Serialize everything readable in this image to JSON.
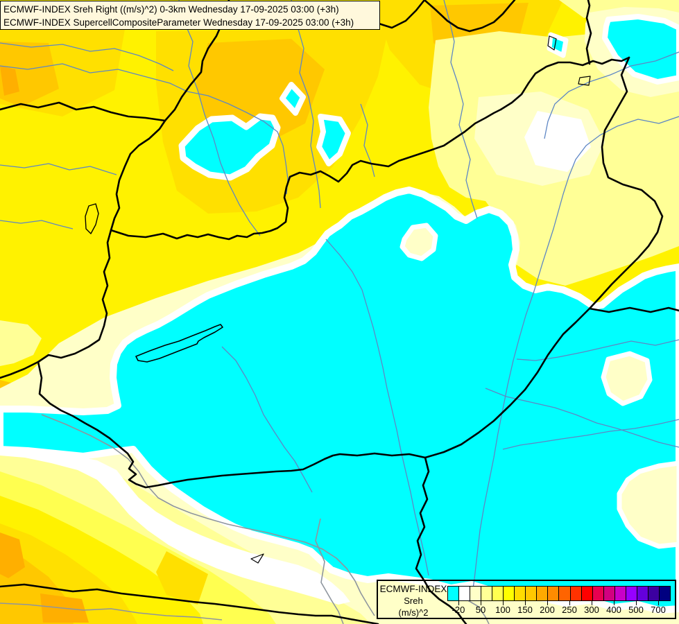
{
  "title": {
    "line1": "ECMWF-INDEX Sreh Right ((m/s)^2) 0-3km Wednesday 17-09-2025 03:00 (+3h)",
    "line2": "ECMWF-INDEX SupercellCompositeParameter Wednesday 17-09-2025 03:00 (+3h)"
  },
  "legend": {
    "product": "ECMWF-INDEX",
    "parameter": "Sreh",
    "unit": "(m/s)^2",
    "scale": {
      "colors": [
        "#00FFFF",
        "#FFFFFF",
        "#FFFFC8",
        "#FFFF96",
        "#FFFF50",
        "#FFFF00",
        "#FFDC00",
        "#FFC800",
        "#FFAA00",
        "#FF8C00",
        "#FF6400",
        "#FF3200",
        "#FF0000",
        "#E80050",
        "#D20080",
        "#C800C8",
        "#9600FF",
        "#6400DC",
        "#3C00A0",
        "#000080"
      ],
      "tick_labels": [
        "-20",
        "50",
        "100",
        "150",
        "200",
        "250",
        "300",
        "400",
        "500",
        "700"
      ]
    }
  },
  "map": {
    "region": "Hungary / Carpathian basin",
    "palette": {
      "cyan": "#00FFFF",
      "white": "#FFFFFF",
      "pale_cream": "#FFFFC8",
      "light_yellow": "#FFFF96",
      "yellow": "#FFFF50",
      "bright_yellow": "#FFF200",
      "gold": "#FFE000",
      "amber": "#FFC800",
      "orange": "#FFAF00",
      "border_line": "#000000",
      "river_line": "#5E87C4",
      "river_gray": "#8E959E"
    }
  }
}
